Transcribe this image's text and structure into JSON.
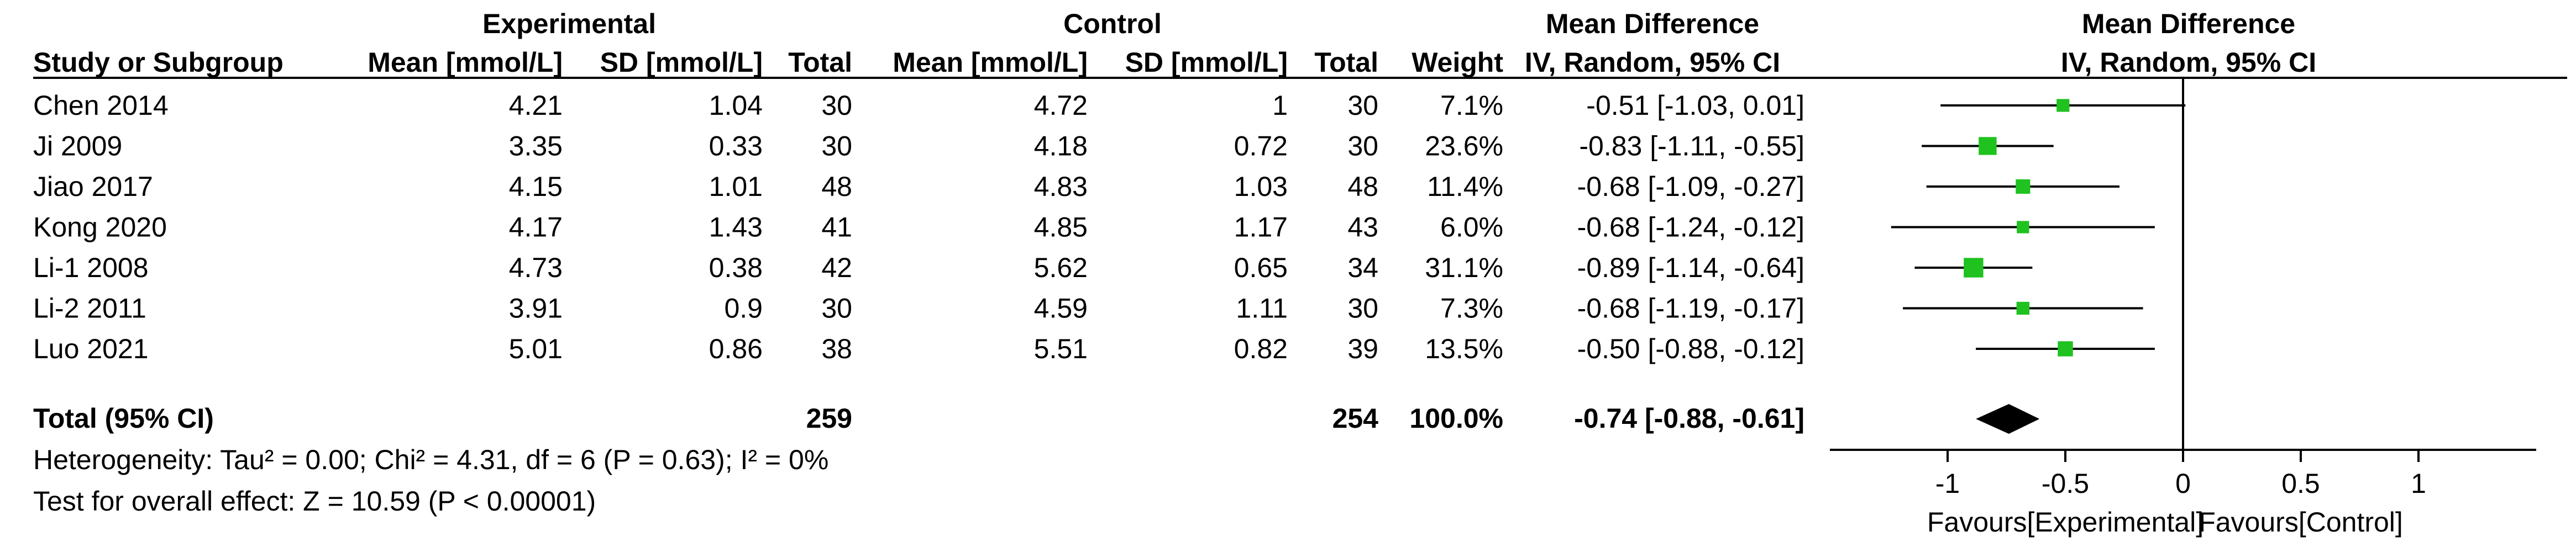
{
  "chart_data": {
    "type": "forest",
    "headers": {
      "group_experimental": "Experimental",
      "group_control": "Control",
      "col_study": "Study or Subgroup",
      "col_exp_mean": "Mean [mmol/L]",
      "col_exp_sd": "SD [mmol/L]",
      "col_exp_total": "Total",
      "col_ctrl_mean": "Mean [mmol/L]",
      "col_ctrl_sd": "SD [mmol/L]",
      "col_ctrl_total": "Total",
      "col_weight": "Weight",
      "col_md_title": "Mean Difference",
      "col_md_method": "IV, Random, 95% CI",
      "plot_title": "Mean Difference",
      "plot_method": "IV, Random, 95% CI"
    },
    "studies": [
      {
        "name": "Chen 2014",
        "exp_mean": "4.21",
        "exp_sd": "1.04",
        "exp_total": "30",
        "ctrl_mean": "4.72",
        "ctrl_sd": "1",
        "ctrl_total": "30",
        "weight": "7.1%",
        "weight_pct": 7.1,
        "ci_text": "-0.51 [-1.03, 0.01]",
        "md": -0.51,
        "lo": -1.03,
        "hi": 0.01
      },
      {
        "name": "Ji 2009",
        "exp_mean": "3.35",
        "exp_sd": "0.33",
        "exp_total": "30",
        "ctrl_mean": "4.18",
        "ctrl_sd": "0.72",
        "ctrl_total": "30",
        "weight": "23.6%",
        "weight_pct": 23.6,
        "ci_text": "-0.83 [-1.11, -0.55]",
        "md": -0.83,
        "lo": -1.11,
        "hi": -0.55
      },
      {
        "name": "Jiao 2017",
        "exp_mean": "4.15",
        "exp_sd": "1.01",
        "exp_total": "48",
        "ctrl_mean": "4.83",
        "ctrl_sd": "1.03",
        "ctrl_total": "48",
        "weight": "11.4%",
        "weight_pct": 11.4,
        "ci_text": "-0.68 [-1.09, -0.27]",
        "md": -0.68,
        "lo": -1.09,
        "hi": -0.27
      },
      {
        "name": "Kong 2020",
        "exp_mean": "4.17",
        "exp_sd": "1.43",
        "exp_total": "41",
        "ctrl_mean": "4.85",
        "ctrl_sd": "1.17",
        "ctrl_total": "43",
        "weight": "6.0%",
        "weight_pct": 6.0,
        "ci_text": "-0.68 [-1.24, -0.12]",
        "md": -0.68,
        "lo": -1.24,
        "hi": -0.12
      },
      {
        "name": "Li-1 2008",
        "exp_mean": "4.73",
        "exp_sd": "0.38",
        "exp_total": "42",
        "ctrl_mean": "5.62",
        "ctrl_sd": "0.65",
        "ctrl_total": "34",
        "weight": "31.1%",
        "weight_pct": 31.1,
        "ci_text": "-0.89 [-1.14, -0.64]",
        "md": -0.89,
        "lo": -1.14,
        "hi": -0.64
      },
      {
        "name": "Li-2 2011",
        "exp_mean": "3.91",
        "exp_sd": "0.9",
        "exp_total": "30",
        "ctrl_mean": "4.59",
        "ctrl_sd": "1.11",
        "ctrl_total": "30",
        "weight": "7.3%",
        "weight_pct": 7.3,
        "ci_text": "-0.68 [-1.19, -0.17]",
        "md": -0.68,
        "lo": -1.19,
        "hi": -0.17
      },
      {
        "name": "Luo 2021",
        "exp_mean": "5.01",
        "exp_sd": "0.86",
        "exp_total": "38",
        "ctrl_mean": "5.51",
        "ctrl_sd": "0.82",
        "ctrl_total": "39",
        "weight": "13.5%",
        "weight_pct": 13.5,
        "ci_text": "-0.50 [-0.88, -0.12]",
        "md": -0.5,
        "lo": -0.88,
        "hi": -0.12
      }
    ],
    "total": {
      "label": "Total (95% CI)",
      "exp_total": "259",
      "ctrl_total": "254",
      "weight": "100.0%",
      "ci_text": "-0.74 [-0.88, -0.61]",
      "md": -0.74,
      "lo": -0.88,
      "hi": -0.61
    },
    "heterogeneity": "Heterogeneity: Tau² = 0.00; Chi² = 4.31, df = 6 (P = 0.63); I² = 0%",
    "overall_effect": "Test for overall effect: Z = 10.59 (P < 0.00001)",
    "x_axis": {
      "range": [
        -1.5,
        1.5
      ],
      "ticks": [
        -1,
        -0.5,
        0,
        0.5,
        1
      ],
      "tick_labels": [
        "-1",
        "-0.5",
        "0",
        "0.5",
        "1"
      ],
      "favours_left": "Favours[Experimental]",
      "favours_right": "Favours[Control]"
    },
    "colors": {
      "marker": "#1fc21f",
      "diamond": "#000000"
    }
  }
}
